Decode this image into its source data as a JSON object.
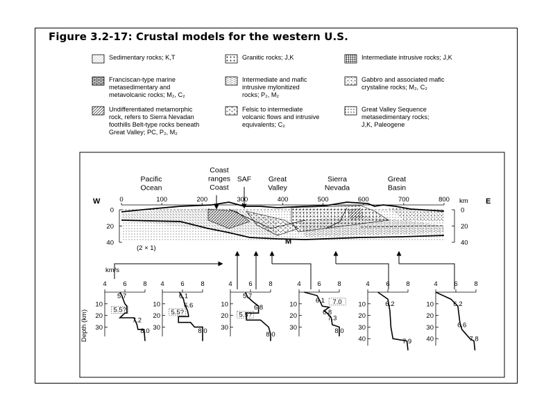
{
  "figure": {
    "title": "Figure 3.2-17: Crustal models for the western U.S."
  },
  "legend": [
    {
      "label": [
        "Sedimentary rocks; K,T"
      ],
      "pattern": "fine-dots"
    },
    {
      "label": [
        "Franciscan-type marine",
        "metasedimentary and",
        "metavolcanic rocks; M₂, C₂"
      ],
      "pattern": "brick"
    },
    {
      "label": [
        "Undifferentiated metamorphic",
        "rock, refers to Sierra Nevadan",
        "foothills Belt-type rocks beneath",
        "Great Valley; PC, P₂, M₂"
      ],
      "pattern": "diagonal"
    },
    {
      "label": [
        "Granitic rocks; J,K"
      ],
      "pattern": "crosses"
    },
    {
      "label": [
        "Intermediate and mafic",
        "intrusive mylonitized",
        "rocks; P₂, M₂"
      ],
      "pattern": "dashes"
    },
    {
      "label": [
        "Felsic to intermediate",
        "volcanic flows and intrusive",
        "equivalents; C₂"
      ],
      "pattern": "v-marks"
    },
    {
      "label": [
        "Intermediate intrusive rocks; J,K"
      ],
      "pattern": "dense-crosses"
    },
    {
      "label": [
        "Gabbro and associated mafic",
        "crystaline rocks; M₂, C₂"
      ],
      "pattern": "plus-dots"
    },
    {
      "label": [
        "Great Valley Sequence",
        "metasedimentary rocks;",
        "J,K, Paleogene"
      ],
      "pattern": "coarse-dots"
    }
  ],
  "section": {
    "west_label": "W",
    "east_label": "E",
    "regions": [
      {
        "lines": [
          "Pacific",
          "Ocean"
        ]
      },
      {
        "lines": [
          "Coast",
          "ranges",
          "Coast"
        ]
      },
      {
        "lines": [
          "SAF"
        ]
      },
      {
        "lines": [
          "Great",
          "Valley"
        ]
      },
      {
        "lines": [
          "Sierra",
          "Nevada"
        ]
      },
      {
        "lines": [
          "Great",
          "Basin"
        ]
      }
    ],
    "distance_ticks": [
      "0",
      "100",
      "200",
      "300",
      "400",
      "500",
      "600",
      "700",
      "800"
    ],
    "distance_unit": "km",
    "depth_ticks": [
      "0",
      "20",
      "40"
    ],
    "vertical_exaggeration": "(2 × 1)",
    "moho_label": "M"
  },
  "profiles": {
    "velocity_unit": "km/s",
    "depth_axis_label": "Depth (km)",
    "velocity_ticks": [
      "4",
      "6",
      "8"
    ],
    "items": [
      {
        "depth_ticks": [
          "10",
          "20",
          "30"
        ],
        "labels": [
          "5.7",
          "5.5?",
          "7.2",
          "8.0"
        ]
      },
      {
        "depth_ticks": [
          "10",
          "20",
          "30"
        ],
        "labels": [
          "6.1",
          "6.6",
          "5.5?",
          "8.0"
        ]
      },
      {
        "depth_ticks": [
          "10",
          "20",
          "30"
        ],
        "labels": [
          "5.7",
          "6.8",
          "5.5?",
          "8.0"
        ]
      },
      {
        "depth_ticks": [
          "10",
          "20",
          "30"
        ],
        "labels": [
          "6.1",
          "7.0",
          "6.8",
          "7.3",
          "8.0"
        ]
      },
      {
        "depth_ticks": [
          "10",
          "20",
          "30",
          "40"
        ],
        "labels": [
          "6.2",
          "7.9"
        ]
      },
      {
        "depth_ticks": [
          "10",
          "20",
          "30",
          "40"
        ],
        "labels": [
          "6.2",
          "6.6",
          "7.8"
        ]
      }
    ]
  }
}
